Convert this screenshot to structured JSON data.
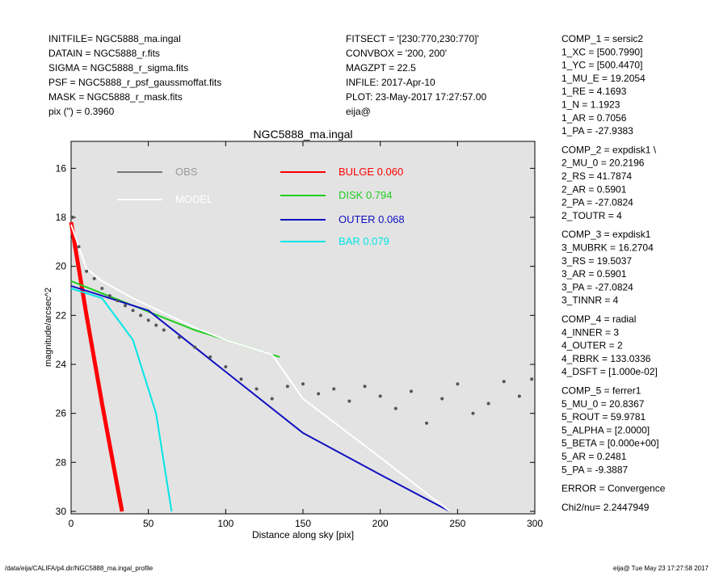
{
  "header_left": [
    "INITFILE= NGC5888_ma.ingal",
    "DATAIN  = NGC5888_r.fits",
    "SIGMA  = NGC5888_r_sigma.fits",
    "PSF    = NGC5888_r_psf_gaussmoffat.fits",
    "MASK   = NGC5888_r_mask.fits",
    "pix (\") =  0.3960"
  ],
  "header_middle": [
    "FITSECT = '[230:770,230:770]'",
    "CONVBOX = '200, 200'",
    "MAGZPT =              22.5",
    "INFILE: 2017-Apr-10",
    "PLOT: 23-May-2017 17:27:57.00",
    "eija@"
  ],
  "components": [
    [
      "COMP_1  = sersic2",
      "1_XC    = [500.7990]",
      "1_YC    = [500.4470]",
      "1_MU_E  = 19.2054",
      "1_RE    = 4.1693",
      "1_N     = 1.1923",
      "1_AR    = 0.7056",
      "1_PA    = -27.9383"
    ],
    [
      "COMP_2  = expdisk1 \\",
      "2_MU_0  = 20.2196",
      "2_RS    = 41.7874",
      "2_AR    = 0.5901",
      "2_PA    = -27.0824",
      "2_TOUTR =  4"
    ],
    [
      "COMP_3  = expdisk1",
      "3_MUBRK = 16.2704",
      "3_RS    = 19.5037",
      "3_AR    = 0.5901",
      "3_PA    = -27.0824",
      "3_TINNR =  4"
    ],
    [
      "COMP_4  = radial",
      "4_INNER =  3",
      "4_OUTER =  2",
      "4_RBRK  = 133.0336",
      "4_DSFT  = [1.000e-02]"
    ],
    [
      "COMP_5  = ferrer1",
      "5_MU_0  = 20.8367",
      "5_ROUT  = 59.9781",
      "5_ALPHA = [2.0000]",
      "5_BETA  = [0.000e+00]",
      "5_AR    = 0.2481",
      "5_PA    = -9.3887"
    ],
    [
      "ERROR   = Convergence"
    ],
    [
      "Chi2/nu=      2.2447949"
    ]
  ],
  "footer_left": "/data/eija/CALIFA/p4.dir/NGC5888_ma.ingal_profile",
  "footer_right": "eija@  Tue May 23 17:27:58 2017",
  "chart_data": {
    "type": "line",
    "title": "NGC5888_ma.ingal",
    "x_label": "Distance along sky [pix]",
    "y_label": "magnitude/arcsec^2",
    "xlim": [
      0,
      300
    ],
    "ylim": [
      30.1,
      14.9
    ],
    "xticks": [
      0,
      50,
      100,
      150,
      200,
      250,
      300
    ],
    "yticks": [
      16,
      18,
      20,
      22,
      24,
      26,
      28,
      30
    ],
    "background": "#e3e3e3",
    "series": [
      {
        "name": "OBS",
        "color": "#555555",
        "label_color": "#999999",
        "style": "points",
        "x": [
          1,
          5,
          10,
          15,
          20,
          25,
          30,
          35,
          40,
          45,
          50,
          55,
          60,
          70,
          80,
          90,
          100,
          110,
          120,
          130,
          140,
          150,
          160,
          170,
          180,
          190,
          200,
          210,
          220,
          230,
          240,
          250,
          260,
          270,
          280,
          290,
          298
        ],
        "values": [
          18,
          19.2,
          20.2,
          20.5,
          20.9,
          21.2,
          21.4,
          21.6,
          21.8,
          22.0,
          22.2,
          22.4,
          22.6,
          22.9,
          23.3,
          23.7,
          24.1,
          24.6,
          25.0,
          25.4,
          24.9,
          24.8,
          25.2,
          25.0,
          25.5,
          24.9,
          25.3,
          25.8,
          25.1,
          26.4,
          25.4,
          24.8,
          26.0,
          25.6,
          24.7,
          25.3,
          24.6
        ]
      },
      {
        "name": "MODEL",
        "color": "#ffffff",
        "label_color": "#ffffff",
        "style": "line",
        "x": [
          0,
          10,
          20,
          40,
          60,
          80,
          100,
          130,
          150,
          200,
          245
        ],
        "values": [
          18.3,
          20.1,
          20.6,
          21.3,
          21.9,
          22.5,
          23.0,
          23.6,
          25.4,
          27.8,
          30
        ]
      },
      {
        "name": "BULGE  0.060",
        "color": "#ff0000",
        "label_color": "#ff0000",
        "style": "line",
        "x": [
          0,
          10,
          20,
          30,
          33
        ],
        "values": [
          18.2,
          22.0,
          25.6,
          29.0,
          30
        ]
      },
      {
        "name": "DISK  0.794",
        "color": "#22cc22",
        "label_color": "#22cc22",
        "style": "line",
        "x": [
          0,
          40,
          80,
          135
        ],
        "values": [
          20.6,
          21.6,
          22.6,
          23.7
        ]
      },
      {
        "name": "OUTER  0.068",
        "color": "#1010c0",
        "label_color": "#1010c0",
        "style": "line",
        "x": [
          0,
          50,
          100,
          150,
          200,
          245
        ],
        "values": [
          20.8,
          21.8,
          24.3,
          26.8,
          28.5,
          30
        ]
      },
      {
        "name": "BAR  0.079",
        "color": "#00e5e5",
        "label_color": "#00e5e5",
        "style": "line",
        "x": [
          0,
          20,
          40,
          55,
          65
        ],
        "values": [
          20.9,
          21.3,
          23.0,
          26.0,
          30
        ]
      }
    ]
  }
}
